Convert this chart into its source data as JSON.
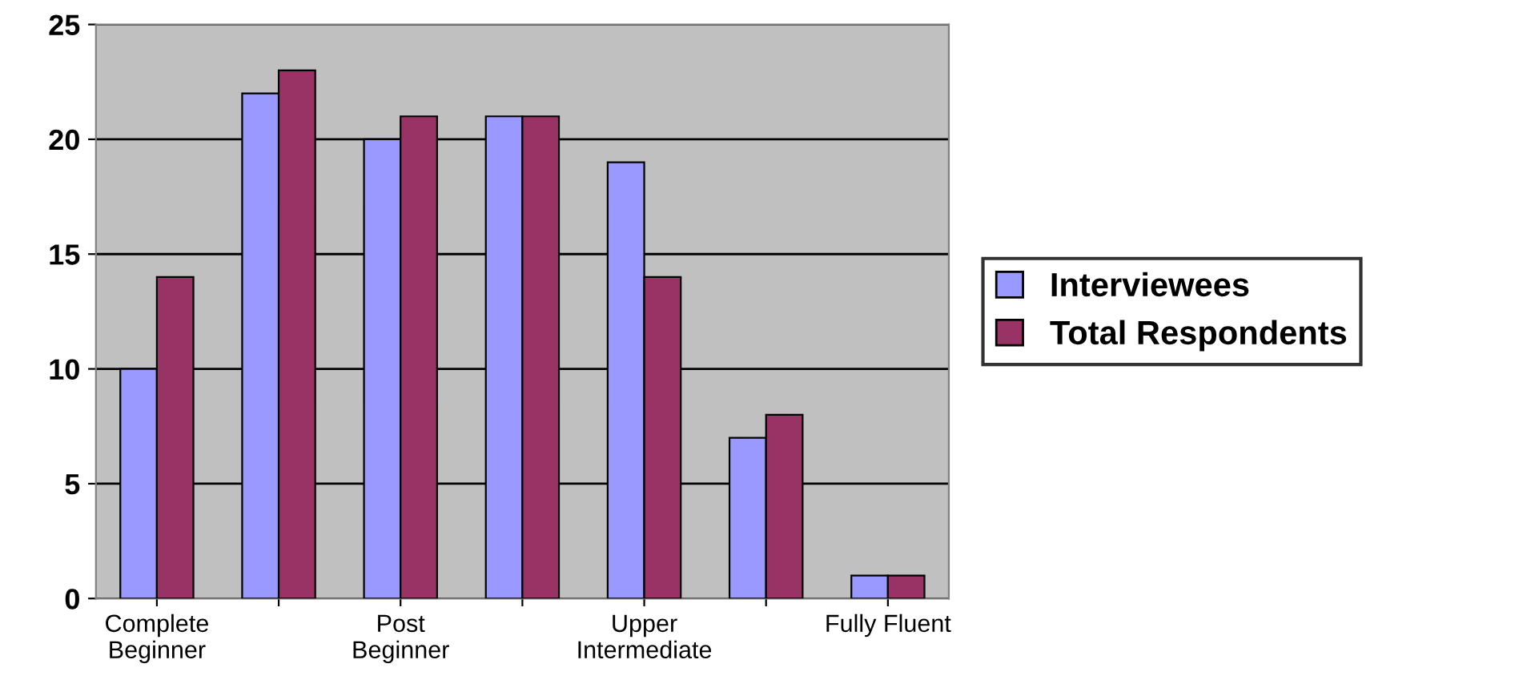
{
  "chart_data": {
    "type": "bar",
    "categories": [
      "Complete\nBeginner",
      null,
      "Post\nBeginner",
      null,
      "Upper\nIntermediate",
      null,
      "Fully Fluent"
    ],
    "series": [
      {
        "name": "Interviewees",
        "color": "#9999ff",
        "values": [
          10,
          22,
          20,
          21,
          19,
          7,
          1
        ]
      },
      {
        "name": "Total Respondents",
        "color": "#993366",
        "values": [
          14,
          23,
          21,
          21,
          14,
          8,
          1
        ]
      }
    ],
    "ylim": [
      0,
      25
    ],
    "yticks": [
      0,
      5,
      10,
      15,
      20,
      25
    ],
    "grid": "y",
    "legend": "right"
  }
}
